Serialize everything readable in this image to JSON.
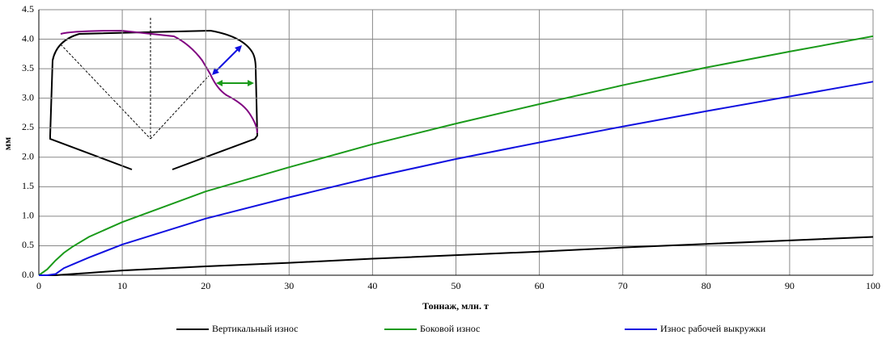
{
  "chart_data": {
    "type": "line",
    "x_label": "Тоннаж, млн. т",
    "y_label": "мм",
    "x": [
      0,
      1,
      2,
      3,
      4,
      6,
      10,
      20,
      30,
      40,
      50,
      60,
      70,
      80,
      90,
      100
    ],
    "series": [
      {
        "name": "Вертикальный износ",
        "color": "#000000",
        "values": [
          0,
          0,
          0,
          0.01,
          0.02,
          0.04,
          0.08,
          0.15,
          0.21,
          0.28,
          0.34,
          0.4,
          0.47,
          0.53,
          0.59,
          0.65
        ]
      },
      {
        "name": "Боковой износ",
        "color": "#1a9a1a",
        "values": [
          0,
          0.1,
          0.25,
          0.38,
          0.48,
          0.65,
          0.9,
          1.42,
          1.83,
          2.22,
          2.57,
          2.9,
          3.22,
          3.52,
          3.79,
          4.05
        ]
      },
      {
        "name": "Износ рабочей выкружки",
        "color": "#1010e0",
        "values": [
          0,
          0,
          0.02,
          0.12,
          0.18,
          0.3,
          0.52,
          0.96,
          1.32,
          1.66,
          1.97,
          2.25,
          2.52,
          2.78,
          3.03,
          3.28
        ]
      }
    ],
    "xlim": [
      0,
      100
    ],
    "xticks": [
      0,
      10,
      20,
      30,
      40,
      50,
      60,
      70,
      80,
      90,
      100
    ],
    "ylim": [
      0,
      4.5
    ],
    "yticks": [
      {
        "value": 0,
        "label": "0.0"
      },
      0.5,
      {
        "value": 1,
        "label": "1.0"
      },
      1.5,
      {
        "value": 2,
        "label": "2.0"
      },
      2.5,
      {
        "value": 3,
        "label": "3.0"
      },
      3.5,
      {
        "value": 4,
        "label": "4.0"
      },
      4.5
    ],
    "grid": true,
    "legend": "bottom"
  }
}
